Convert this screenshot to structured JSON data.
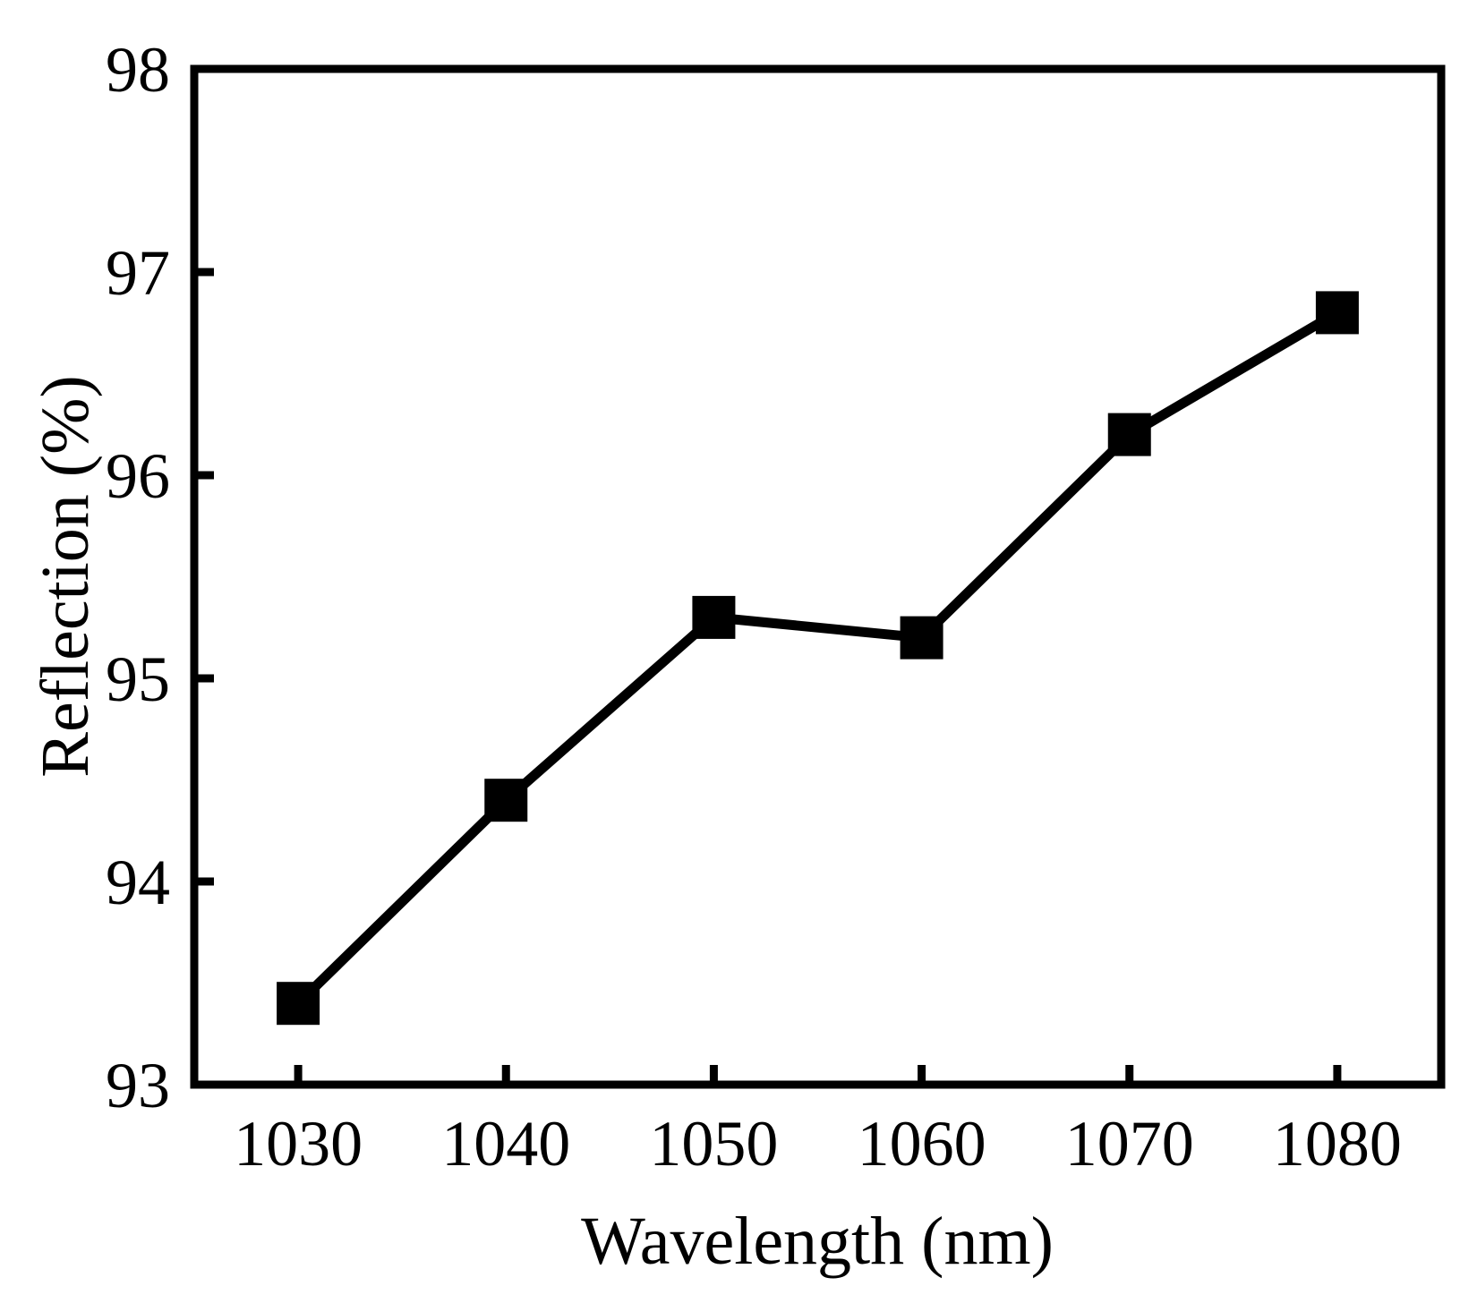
{
  "chart_data": {
    "type": "line",
    "title": "",
    "xlabel": "Wavelength (nm)",
    "ylabel": "Reflection (%)",
    "x": [
      1030,
      1040,
      1050,
      1060,
      1070,
      1080
    ],
    "xlim": [
      1025,
      1085
    ],
    "ylim": [
      93,
      98
    ],
    "x_ticks": [
      1030,
      1040,
      1050,
      1060,
      1070,
      1080
    ],
    "y_ticks": [
      93,
      94,
      95,
      96,
      97,
      98
    ],
    "x_tick_labels": [
      "1030",
      "1040",
      "1050",
      "1060",
      "1070",
      "1080"
    ],
    "y_tick_labels": [
      "93",
      "94",
      "95",
      "96",
      "97",
      "98"
    ],
    "series": [
      {
        "name": "Reflection",
        "marker": "square",
        "color": "#000000",
        "values": [
          93.4,
          94.4,
          95.3,
          95.2,
          96.2,
          96.8
        ]
      }
    ],
    "grid": false,
    "legend": "none"
  }
}
